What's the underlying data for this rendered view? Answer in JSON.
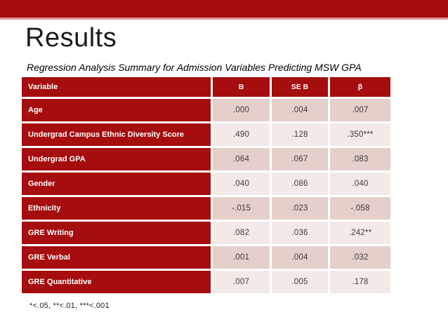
{
  "slide": {
    "title": "Results",
    "table_caption": "Regression Analysis Summary for Admission Variables Predicting MSW GPA",
    "footnote": "*<.05, **<.01, ***<.001"
  },
  "colors": {
    "accent_red": "#a50d0e",
    "banner_underline": "#d89a9a",
    "row_pink_dark": "#e4cfca",
    "row_pink_light": "#f3eae7",
    "value_text": "#3b3b3b",
    "header_text": "#ffffff"
  },
  "chart_data": {
    "type": "table",
    "title": "Regression Analysis Summary for Admission Variables Predicting MSW GPA",
    "columns": [
      "Variable",
      "B",
      "SE B",
      "β"
    ],
    "rows": [
      [
        "Age",
        ".000",
        ".004",
        ".007"
      ],
      [
        "Undergrad Campus Ethnic Diversity Score",
        ".490",
        ".128",
        ".350***"
      ],
      [
        "Undergrad GPA",
        ".064",
        ".067",
        ".083"
      ],
      [
        "Gender",
        ".040",
        ".086",
        ".040"
      ],
      [
        "Ethnicity",
        "-.015",
        ".023",
        "-.058"
      ],
      [
        "GRE Writing",
        ".082",
        ".036",
        ".242**"
      ],
      [
        "GRE Verbal",
        ".001",
        ".004",
        ".032"
      ],
      [
        "GRE Quantitative",
        ".007",
        ".005",
        ".178"
      ]
    ],
    "note": "*<.05, **<.01, ***<.001"
  }
}
